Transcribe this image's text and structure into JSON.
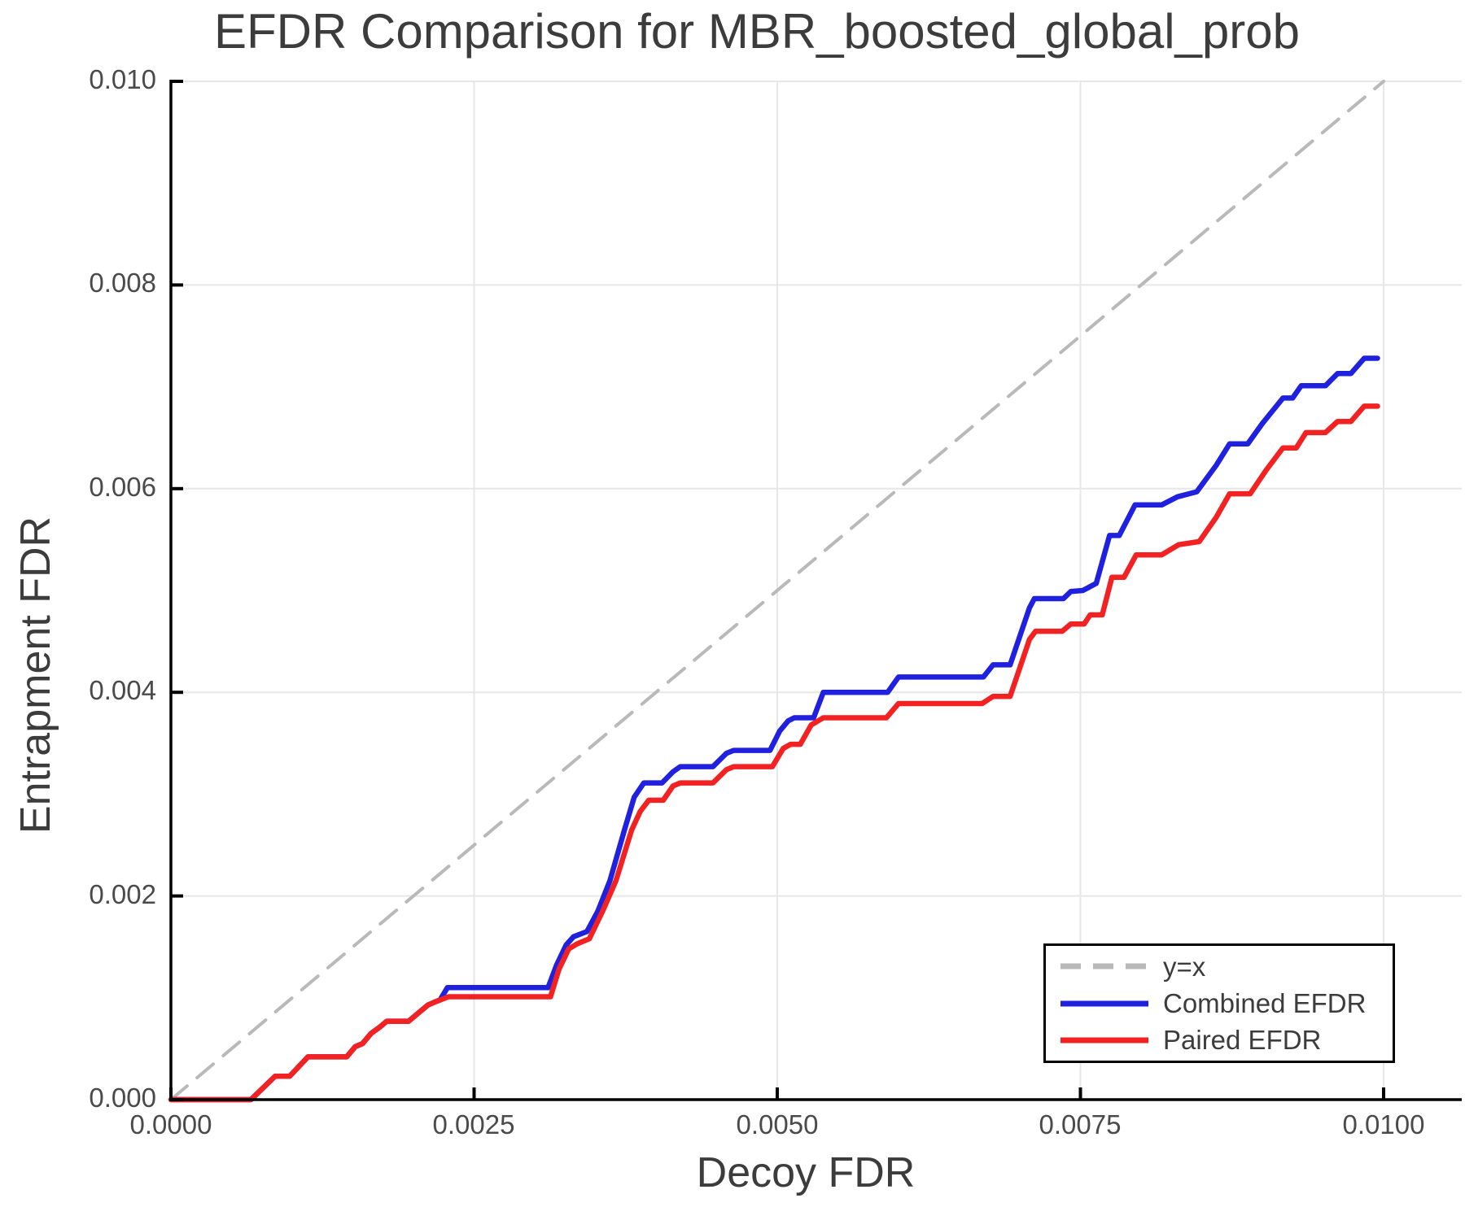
{
  "title": "EFDR Comparison for MBR_boosted_global_prob",
  "axes": {
    "xlabel": "Decoy FDR",
    "ylabel": "Entrapment FDR",
    "x_tick_labels": [
      "0.0000",
      "0.0025",
      "0.0050",
      "0.0075",
      "0.0100"
    ],
    "y_tick_labels": [
      "0.000",
      "0.002",
      "0.004",
      "0.006",
      "0.008",
      "0.010"
    ]
  },
  "legend": {
    "items": [
      {
        "label": "y=x",
        "color": "#b9b9b9",
        "dashed": true
      },
      {
        "label": "Combined EFDR",
        "color": "#2020df",
        "dashed": false
      },
      {
        "label": "Paired EFDR",
        "color": "#f32222",
        "dashed": false
      }
    ]
  },
  "colors": {
    "gridline": "#e7e7e7",
    "spine": "#000000",
    "title_text": "#3c3c3c",
    "tick_text": "#4a4a4a",
    "identity_line": "#b9b9b9",
    "combined_line": "#2020df",
    "paired_line": "#f32222"
  },
  "chart_data": {
    "type": "line",
    "title": "EFDR Comparison for MBR_boosted_global_prob",
    "xlabel": "Decoy FDR",
    "ylabel": "Entrapment FDR",
    "xlim": [
      0,
      0.01
    ],
    "ylim": [
      0,
      0.01
    ],
    "x_tick_values": [
      0,
      0.0025,
      0.005,
      0.0075,
      0.01
    ],
    "y_tick_values": [
      0,
      0.002,
      0.004,
      0.006,
      0.008,
      0.01
    ],
    "grid": true,
    "legend_position": "lower right",
    "series": [
      {
        "name": "y=x",
        "style": "dashed",
        "color": "#b9b9b9",
        "points": [
          [
            0,
            0
          ],
          [
            0.01,
            0.01
          ]
        ]
      },
      {
        "name": "Combined EFDR",
        "style": "solid",
        "color": "#2020df",
        "points": [
          [
            0,
            0
          ],
          [
            0.00066,
            0
          ],
          [
            0.00086,
            0.00023
          ],
          [
            0.00098,
            0.00023
          ],
          [
            0.00113,
            0.00042
          ],
          [
            0.00145,
            0.00042
          ],
          [
            0.00152,
            0.00052
          ],
          [
            0.00158,
            0.00055
          ],
          [
            0.00165,
            0.00065
          ],
          [
            0.00172,
            0.00071
          ],
          [
            0.00178,
            0.00077
          ],
          [
            0.00196,
            0.00077
          ],
          [
            0.00205,
            0.00086
          ],
          [
            0.00212,
            0.00093
          ],
          [
            0.00218,
            0.00096
          ],
          [
            0.00222,
            0.00098
          ],
          [
            0.00228,
            0.0011
          ],
          [
            0.00311,
            0.0011
          ],
          [
            0.00318,
            0.00132
          ],
          [
            0.00326,
            0.00152
          ],
          [
            0.00332,
            0.0016
          ],
          [
            0.00343,
            0.00165
          ],
          [
            0.00352,
            0.00185
          ],
          [
            0.00362,
            0.00215
          ],
          [
            0.00374,
            0.00265
          ],
          [
            0.00382,
            0.00297
          ],
          [
            0.0039,
            0.00311
          ],
          [
            0.00405,
            0.00311
          ],
          [
            0.00414,
            0.00322
          ],
          [
            0.0042,
            0.00327
          ],
          [
            0.00447,
            0.00327
          ],
          [
            0.00458,
            0.0034
          ],
          [
            0.00464,
            0.00343
          ],
          [
            0.00494,
            0.00343
          ],
          [
            0.00502,
            0.00362
          ],
          [
            0.00509,
            0.00372
          ],
          [
            0.00514,
            0.00375
          ],
          [
            0.0053,
            0.00375
          ],
          [
            0.00538,
            0.004
          ],
          [
            0.00591,
            0.004
          ],
          [
            0.006,
            0.00415
          ],
          [
            0.0067,
            0.00415
          ],
          [
            0.00678,
            0.00427
          ],
          [
            0.00692,
            0.00427
          ],
          [
            0.007,
            0.00455
          ],
          [
            0.00708,
            0.00483
          ],
          [
            0.00712,
            0.00492
          ],
          [
            0.00736,
            0.00492
          ],
          [
            0.00742,
            0.00499
          ],
          [
            0.00752,
            0.005
          ],
          [
            0.00763,
            0.00507
          ],
          [
            0.00774,
            0.00554
          ],
          [
            0.00782,
            0.00554
          ],
          [
            0.00795,
            0.00584
          ],
          [
            0.00817,
            0.00584
          ],
          [
            0.0083,
            0.00592
          ],
          [
            0.00846,
            0.00597
          ],
          [
            0.00862,
            0.00623
          ],
          [
            0.00873,
            0.00644
          ],
          [
            0.00888,
            0.00644
          ],
          [
            0.009,
            0.00664
          ],
          [
            0.00917,
            0.00689
          ],
          [
            0.00925,
            0.00689
          ],
          [
            0.00932,
            0.00701
          ],
          [
            0.00952,
            0.00701
          ],
          [
            0.00962,
            0.00713
          ],
          [
            0.00973,
            0.00713
          ],
          [
            0.00984,
            0.00728
          ],
          [
            0.00995,
            0.00728
          ]
        ]
      },
      {
        "name": "Paired EFDR",
        "style": "solid",
        "color": "#f32222",
        "points": [
          [
            0,
            0
          ],
          [
            0.00066,
            0
          ],
          [
            0.00086,
            0.00023
          ],
          [
            0.00098,
            0.00023
          ],
          [
            0.00113,
            0.00042
          ],
          [
            0.00145,
            0.00042
          ],
          [
            0.00152,
            0.00052
          ],
          [
            0.00158,
            0.00055
          ],
          [
            0.00165,
            0.00065
          ],
          [
            0.00172,
            0.00071
          ],
          [
            0.00178,
            0.00077
          ],
          [
            0.00196,
            0.00077
          ],
          [
            0.00205,
            0.00086
          ],
          [
            0.00212,
            0.00093
          ],
          [
            0.00218,
            0.00096
          ],
          [
            0.00229,
            0.00101
          ],
          [
            0.00313,
            0.00101
          ],
          [
            0.0032,
            0.00128
          ],
          [
            0.00328,
            0.00148
          ],
          [
            0.00335,
            0.00153
          ],
          [
            0.00345,
            0.00158
          ],
          [
            0.00356,
            0.00185
          ],
          [
            0.00367,
            0.00215
          ],
          [
            0.0038,
            0.00265
          ],
          [
            0.00387,
            0.00283
          ],
          [
            0.00394,
            0.00294
          ],
          [
            0.00406,
            0.00294
          ],
          [
            0.00414,
            0.00308
          ],
          [
            0.0042,
            0.00311
          ],
          [
            0.00447,
            0.00311
          ],
          [
            0.00458,
            0.00324
          ],
          [
            0.00464,
            0.00327
          ],
          [
            0.00496,
            0.00327
          ],
          [
            0.00505,
            0.00345
          ],
          [
            0.00511,
            0.00349
          ],
          [
            0.00519,
            0.00349
          ],
          [
            0.00528,
            0.00368
          ],
          [
            0.00538,
            0.00375
          ],
          [
            0.0059,
            0.00375
          ],
          [
            0.006,
            0.00389
          ],
          [
            0.00669,
            0.00389
          ],
          [
            0.00678,
            0.00396
          ],
          [
            0.00692,
            0.00396
          ],
          [
            0.007,
            0.00424
          ],
          [
            0.00708,
            0.00452
          ],
          [
            0.00713,
            0.0046
          ],
          [
            0.00735,
            0.0046
          ],
          [
            0.00742,
            0.00467
          ],
          [
            0.00753,
            0.00467
          ],
          [
            0.00758,
            0.00476
          ],
          [
            0.00768,
            0.00476
          ],
          [
            0.00776,
            0.00513
          ],
          [
            0.00786,
            0.00513
          ],
          [
            0.00796,
            0.00535
          ],
          [
            0.00817,
            0.00535
          ],
          [
            0.00831,
            0.00545
          ],
          [
            0.00848,
            0.00548
          ],
          [
            0.00862,
            0.00572
          ],
          [
            0.00873,
            0.00595
          ],
          [
            0.0089,
            0.00595
          ],
          [
            0.00903,
            0.00618
          ],
          [
            0.00917,
            0.0064
          ],
          [
            0.00928,
            0.0064
          ],
          [
            0.00936,
            0.00655
          ],
          [
            0.00952,
            0.00655
          ],
          [
            0.00962,
            0.00666
          ],
          [
            0.00973,
            0.00666
          ],
          [
            0.00984,
            0.00681
          ],
          [
            0.00995,
            0.00681
          ]
        ]
      }
    ]
  }
}
